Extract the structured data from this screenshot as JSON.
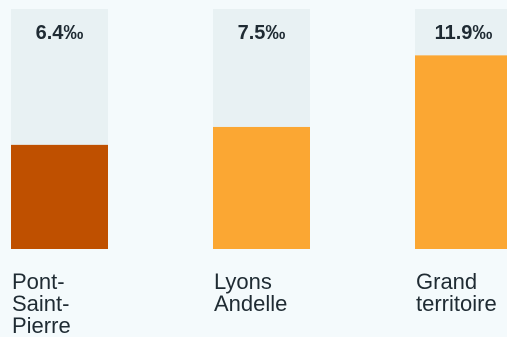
{
  "chart_data": {
    "type": "bar",
    "categories": [
      "Pont-Saint-Pierre",
      "Lyons Andelle",
      "Grand territoire"
    ],
    "category_lines": [
      [
        "Pont-",
        "Saint-",
        "Pierre"
      ],
      [
        "Lyons",
        "Andelle"
      ],
      [
        "Grand",
        "territoire"
      ]
    ],
    "values": [
      6.4,
      7.5,
      11.9
    ],
    "value_labels": [
      "6.4‰",
      "7.5‰",
      "11.9‰"
    ],
    "unit": "‰",
    "ylim": [
      0,
      14.75
    ],
    "grid": false,
    "legend": "none",
    "colors": {
      "highlight": "#bf5000",
      "bar": "#fba733",
      "track": "#e8f1f3",
      "text": "#1f2b33",
      "background": "#f4fafc"
    },
    "bar_colors": [
      "#bf5000",
      "#fba733",
      "#fba733"
    ]
  }
}
